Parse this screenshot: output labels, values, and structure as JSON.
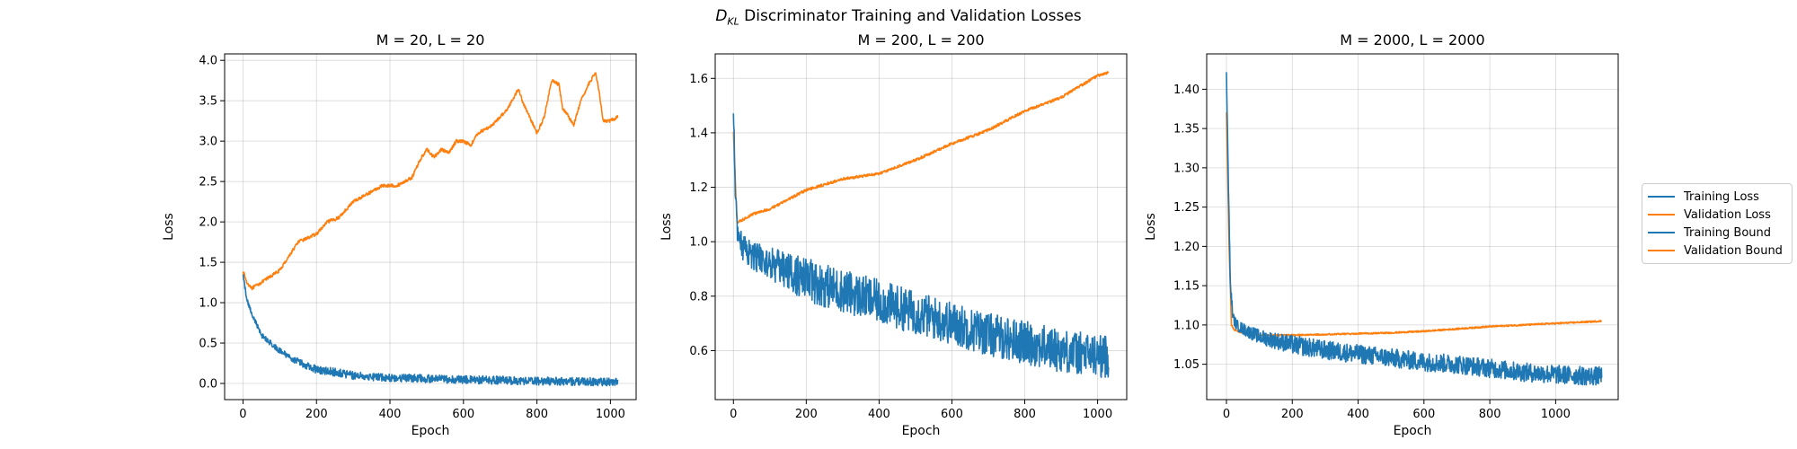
{
  "figure": {
    "suptitle_math": "D",
    "suptitle_sub": "KL",
    "suptitle_text": " Discriminator Training and Validation Losses",
    "legend": [
      {
        "label": "Training Loss",
        "color": "#1f77b4"
      },
      {
        "label": "Validation Loss",
        "color": "#ff7f0e"
      },
      {
        "label": "Training Bound",
        "color": "#1f77b4"
      },
      {
        "label": "Validation Bound",
        "color": "#ff7f0e"
      }
    ]
  },
  "chart_data": [
    {
      "type": "line",
      "title": "M = 20, L = 20",
      "xlabel": "Epoch",
      "ylabel": "Loss",
      "xlim": [
        -50,
        1070
      ],
      "ylim": [
        -0.2,
        4.08
      ],
      "xticks": [
        0,
        200,
        400,
        600,
        800,
        1000
      ],
      "yticks": [
        0.0,
        0.5,
        1.0,
        1.5,
        2.0,
        2.5,
        3.0,
        3.5,
        4.0
      ],
      "ytick_labels": [
        "0.0",
        "0.5",
        "1.0",
        "1.5",
        "2.0",
        "2.5",
        "3.0",
        "3.5",
        "4.0"
      ],
      "grid": true,
      "series": [
        {
          "name": "Validation Loss",
          "color": "#ff7f0e",
          "noise": 0.02,
          "x": [
            0,
            10,
            25,
            50,
            100,
            150,
            200,
            230,
            260,
            300,
            340,
            380,
            420,
            460,
            480,
            500,
            520,
            540,
            560,
            580,
            600,
            620,
            640,
            660,
            680,
            700,
            720,
            750,
            760,
            780,
            800,
            820,
            840,
            860,
            870,
            880,
            900,
            920,
            940,
            960,
            970,
            980,
            1000,
            1020
          ],
          "y": [
            1.4,
            1.25,
            1.18,
            1.25,
            1.4,
            1.75,
            1.85,
            2.0,
            2.05,
            2.25,
            2.35,
            2.45,
            2.45,
            2.55,
            2.75,
            2.9,
            2.8,
            2.9,
            2.85,
            3.0,
            3.0,
            2.95,
            3.1,
            3.15,
            3.2,
            3.3,
            3.4,
            3.65,
            3.5,
            3.3,
            3.1,
            3.3,
            3.75,
            3.7,
            3.4,
            3.35,
            3.2,
            3.5,
            3.7,
            3.85,
            3.6,
            3.25,
            3.25,
            3.3
          ]
        },
        {
          "name": "Training Loss",
          "color": "#1f77b4",
          "noise": 0.05,
          "x": [
            0,
            10,
            25,
            50,
            100,
            150,
            200,
            250,
            300,
            400,
            500,
            600,
            700,
            800,
            900,
            1000,
            1020
          ],
          "y": [
            1.35,
            1.05,
            0.85,
            0.6,
            0.4,
            0.27,
            0.17,
            0.14,
            0.1,
            0.07,
            0.06,
            0.045,
            0.04,
            0.03,
            0.025,
            0.02,
            0.02
          ]
        }
      ]
    },
    {
      "type": "line",
      "title": "M = 200, L = 200",
      "xlabel": "Epoch",
      "ylabel": "Loss",
      "xlim": [
        -50,
        1080
      ],
      "ylim": [
        0.42,
        1.69
      ],
      "xticks": [
        0,
        200,
        400,
        600,
        800,
        1000
      ],
      "yticks": [
        0.6,
        0.8,
        1.0,
        1.2,
        1.4,
        1.6
      ],
      "ytick_labels": [
        "0.6",
        "0.8",
        "1.0",
        "1.2",
        "1.4",
        "1.6"
      ],
      "grid": true,
      "series": [
        {
          "name": "Validation Loss",
          "color": "#ff7f0e",
          "noise": 0.005,
          "x": [
            0,
            10,
            25,
            50,
            100,
            200,
            300,
            400,
            500,
            600,
            700,
            800,
            900,
            1000,
            1030
          ],
          "y": [
            1.4,
            1.07,
            1.08,
            1.1,
            1.12,
            1.19,
            1.23,
            1.25,
            1.3,
            1.36,
            1.41,
            1.48,
            1.53,
            1.61,
            1.62
          ]
        },
        {
          "name": "Training Loss",
          "color": "#1f77b4",
          "noise": 0.08,
          "x": [
            0,
            5,
            10,
            25,
            50,
            100,
            200,
            300,
            400,
            500,
            600,
            700,
            800,
            900,
            1000,
            1030
          ],
          "y": [
            1.5,
            1.2,
            1.05,
            0.98,
            0.95,
            0.92,
            0.86,
            0.82,
            0.78,
            0.74,
            0.7,
            0.66,
            0.63,
            0.6,
            0.58,
            0.58
          ]
        }
      ]
    },
    {
      "type": "line",
      "title": "M = 2000, L = 2000",
      "xlabel": "Epoch",
      "ylabel": "Loss",
      "xlim": [
        -60,
        1190
      ],
      "ylim": [
        1.005,
        1.445
      ],
      "xticks": [
        0,
        200,
        400,
        600,
        800,
        1000
      ],
      "yticks": [
        1.05,
        1.1,
        1.15,
        1.2,
        1.25,
        1.3,
        1.35,
        1.4
      ],
      "ytick_labels": [
        "1.05",
        "1.10",
        "1.15",
        "1.20",
        "1.25",
        "1.30",
        "1.35",
        "1.40"
      ],
      "grid": true,
      "series": [
        {
          "name": "Validation Loss",
          "color": "#ff7f0e",
          "noise": 0.001,
          "x": [
            0,
            8,
            15,
            25,
            50,
            100,
            200,
            300,
            400,
            500,
            600,
            700,
            800,
            900,
            1000,
            1100,
            1140
          ],
          "y": [
            1.37,
            1.2,
            1.1,
            1.093,
            1.09,
            1.087,
            1.087,
            1.088,
            1.089,
            1.09,
            1.092,
            1.095,
            1.098,
            1.1,
            1.102,
            1.104,
            1.105
          ]
        },
        {
          "name": "Training Loss",
          "color": "#1f77b4",
          "noise": 0.012,
          "x": [
            0,
            5,
            12,
            20,
            30,
            50,
            100,
            150,
            200,
            300,
            400,
            500,
            600,
            700,
            800,
            900,
            1000,
            1100,
            1140
          ],
          "y": [
            1.425,
            1.3,
            1.15,
            1.11,
            1.1,
            1.095,
            1.085,
            1.08,
            1.075,
            1.068,
            1.063,
            1.058,
            1.053,
            1.05,
            1.045,
            1.04,
            1.037,
            1.035,
            1.035
          ]
        }
      ]
    }
  ]
}
